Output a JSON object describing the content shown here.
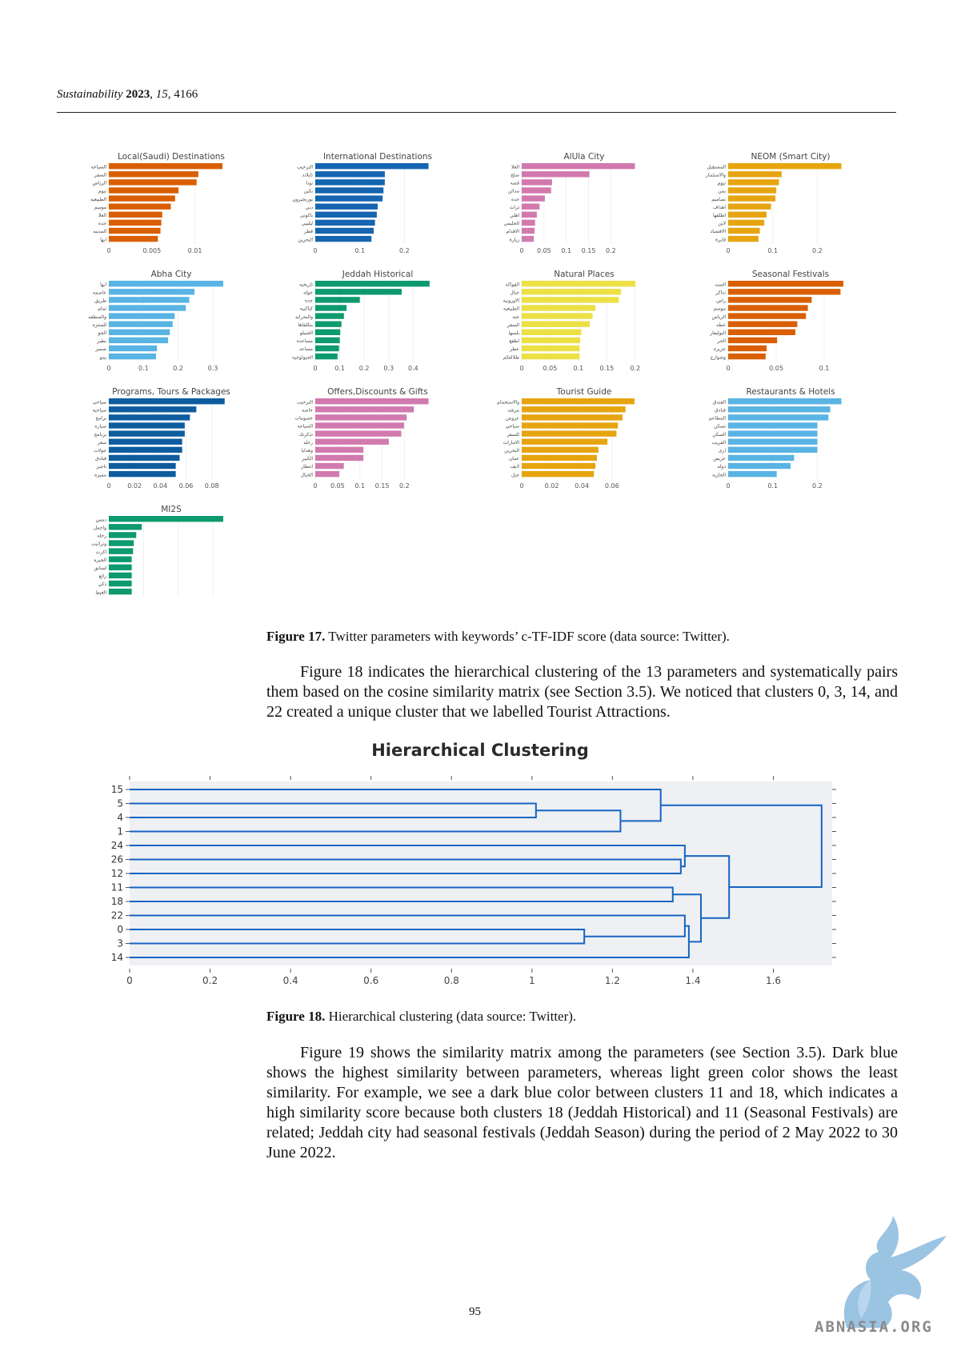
{
  "header": {
    "journal": "Sustainability",
    "year": "2023",
    "volume": "15",
    "article": "4166"
  },
  "figure17": {
    "caption_label": "Figure 17.",
    "caption_text": " Twitter parameters with keywords’ c-TF-IDF score (data source: Twitter)."
  },
  "paragraph1": "Figure 18 indicates the hierarchical clustering of the 13 parameters and systematically pairs them based on the cosine similarity matrix (see Section 3.5). We noticed that clusters 0, 3, 14, and 22 created a unique cluster that we labelled Tourist Attractions.",
  "figure18": {
    "caption_label": "Figure 18.",
    "caption_text": " Hierarchical clustering (data source: Twitter)."
  },
  "paragraph2": "Figure 19 shows the similarity matrix among the parameters (see Section 3.5). Dark blue shows the highest similarity between parameters, whereas light green color shows the least similarity. For example, we see a dark blue color between clusters 11 and 18, which indicates a high similarity score because both clusters 18 (Jeddah Historical) and 11 (Seasonal Festivals) are related; Jeddah city had seasonal festivals (Jeddah Season) during the period of 2 May 2022 to 30 June 2022.",
  "page_number": "95",
  "watermark": {
    "text": "ABNASIA.ORG"
  },
  "chart_data": [
    {
      "type": "bar",
      "orientation": "horizontal",
      "title": "Local(Saudi) Destinations",
      "color": "#d95f02",
      "categories": [
        "السياحه",
        "السفر",
        "الرياض",
        "نيوم",
        "الطبيعيه",
        "موسم",
        "العلا",
        "جده",
        "المدينه",
        "ابها"
      ],
      "values": [
        0.0132,
        0.0104,
        0.0102,
        0.0081,
        0.0077,
        0.0072,
        0.0062,
        0.0061,
        0.006,
        0.0057
      ],
      "ticks": [
        0,
        0.005,
        0.01
      ],
      "tick_labels": [
        "0",
        "0.005",
        "0.01"
      ],
      "xlim": [
        0,
        0.0145
      ]
    },
    {
      "type": "bar",
      "orientation": "horizontal",
      "title": "International Destinations",
      "color": "#1565b0",
      "categories": [
        "الترحيب",
        "تايلاند",
        "تونا",
        "بكين",
        "بورنجيرون",
        "دبي",
        "باكوني",
        "ليليبي",
        "قطر",
        "البحرين"
      ],
      "values": [
        0.254,
        0.156,
        0.156,
        0.153,
        0.151,
        0.14,
        0.138,
        0.134,
        0.131,
        0.126
      ],
      "ticks": [
        0,
        0.1,
        0.2
      ],
      "tick_labels": [
        "0",
        "0.1",
        "0.2"
      ],
      "xlim": [
        0,
        0.28
      ]
    },
    {
      "type": "bar",
      "orientation": "horizontal",
      "title": "AlUla City",
      "color": "#d17aae",
      "categories": [
        "العلا",
        "صلح",
        "قصه",
        "مدائن",
        "جده",
        "تراث",
        "اهلي",
        "الحليمي",
        "الاقدام",
        "زيارة"
      ],
      "values": [
        0.254,
        0.152,
        0.068,
        0.066,
        0.052,
        0.04,
        0.034,
        0.03,
        0.029,
        0.027
      ],
      "ticks": [
        0,
        0.05,
        0.1,
        0.15,
        0.2
      ],
      "tick_labels": [
        "0",
        "0.05",
        "0.1",
        "0.15",
        "0.2"
      ],
      "xlim": [
        0,
        0.28
      ]
    },
    {
      "type": "bar",
      "orientation": "horizontal",
      "title": "NEOM (Smart City)",
      "color": "#e6a50f",
      "categories": [
        "المستقبل",
        "والاستثمار",
        "نيوم",
        "يمن",
        "تصاميم",
        "اهداف",
        "اطلقها",
        "لاين",
        "الاقتصاد",
        "فايرة"
      ],
      "values": [
        0.254,
        0.12,
        0.114,
        0.108,
        0.106,
        0.096,
        0.086,
        0.081,
        0.071,
        0.068
      ],
      "ticks": [
        0,
        0.1,
        0.2
      ],
      "tick_labels": [
        "0",
        "0.1",
        "0.2"
      ],
      "xlim": [
        0,
        0.28
      ]
    },
    {
      "type": "bar",
      "orientation": "horizontal",
      "title": "Abha City",
      "color": "#58b4e3",
      "categories": [
        "ابها",
        "عاصمه",
        "طريق",
        "تمام",
        "والمنطقه",
        "للمنتزه",
        "الجو",
        "بطير",
        "صمير",
        "يمو"
      ],
      "values": [
        0.33,
        0.247,
        0.232,
        0.222,
        0.19,
        0.184,
        0.176,
        0.171,
        0.139,
        0.136
      ],
      "ticks": [
        0,
        0.1,
        0.2,
        0.3
      ],
      "tick_labels": [
        "0",
        "0.1",
        "0.2",
        "0.3"
      ],
      "xlim": [
        0,
        0.36
      ]
    },
    {
      "type": "bar",
      "orientation": "horizontal",
      "title": "Jeddah Historical",
      "color": "#0c9a6e",
      "categories": [
        "تاريخيه",
        "جوله",
        "جده",
        "كباكبيه",
        "والبحرايه",
        "بتكلفاها",
        "الجيبلو",
        "مساعده",
        "مساعد",
        "الجيولوجيه"
      ],
      "values": [
        0.467,
        0.353,
        0.182,
        0.128,
        0.117,
        0.107,
        0.102,
        0.1,
        0.097,
        0.091
      ],
      "ticks": [
        0,
        0.1,
        0.2,
        0.3,
        0.4
      ],
      "tick_labels": [
        "0",
        "0.1",
        "0.2",
        "0.3",
        "0.4"
      ],
      "xlim": [
        0,
        0.51
      ]
    },
    {
      "type": "bar",
      "orientation": "horizontal",
      "title": "Natural Places",
      "color": "#ede044",
      "categories": [
        "الفواكه",
        "جبال",
        "الاوروبيه",
        "الطبيعيه",
        "جنه",
        "السفر",
        "بلمبها",
        "اطفع",
        "عطر",
        "طلالعكم"
      ],
      "values": [
        0.2,
        0.175,
        0.171,
        0.13,
        0.125,
        0.12,
        0.105,
        0.103,
        0.102,
        0.102
      ],
      "ticks": [
        0,
        0.05,
        0.1,
        0.15,
        0.2
      ],
      "tick_labels": [
        "0",
        "0.05",
        "0.1",
        "0.15",
        "0.2"
      ],
      "xlim": [
        0,
        0.22
      ]
    },
    {
      "type": "bar",
      "orientation": "horizontal",
      "title": "Seasonal Festivals",
      "color": "#d95f02",
      "categories": [
        "السند",
        "تذاكر",
        "راس",
        "موسم",
        "الرياض",
        "خطه",
        "البوليفار",
        "الحر",
        "جزيره",
        "وشوارع"
      ],
      "values": [
        0.12,
        0.117,
        0.087,
        0.083,
        0.081,
        0.072,
        0.07,
        0.051,
        0.04,
        0.039
      ],
      "ticks": [
        0,
        0.05,
        0.1
      ],
      "tick_labels": [
        "0",
        "0.05",
        "0.1"
      ],
      "xlim": [
        0,
        0.13
      ]
    },
    {
      "type": "bar",
      "orientation": "horizontal",
      "title": "Programs, Tours & Packages",
      "color": "#0e5c9e",
      "categories": [
        "سياحي",
        "سياحيه",
        "برامج",
        "سياره",
        "برنامج",
        "سعر",
        "جولات",
        "فنادق",
        "تاجير",
        "مميزه"
      ],
      "values": [
        0.09,
        0.068,
        0.063,
        0.059,
        0.059,
        0.057,
        0.057,
        0.055,
        0.052,
        0.052
      ],
      "ticks": [
        0,
        0.02,
        0.04,
        0.06,
        0.08
      ],
      "tick_labels": [
        "0",
        "0.02",
        "0.04",
        "0.06",
        "0.08"
      ],
      "xlim": [
        0,
        0.097
      ]
    },
    {
      "type": "bar",
      "orientation": "horizontal",
      "title": "Offers,Discounts & Gifts",
      "color": "#d17aae",
      "categories": [
        "الترحيب",
        "خاصه",
        "خصومات",
        "السياحه",
        "تذكرتك",
        "رحله",
        "وهدايا",
        "الكبير",
        "انتظار",
        "الجبال"
      ],
      "values": [
        0.254,
        0.221,
        0.205,
        0.199,
        0.193,
        0.165,
        0.108,
        0.108,
        0.064,
        0.054
      ],
      "ticks": [
        0,
        0.05,
        0.1,
        0.15,
        0.2
      ],
      "tick_labels": [
        "0",
        "0.05",
        "0.1",
        "0.15",
        "0.2"
      ],
      "xlim": [
        0,
        0.28
      ]
    },
    {
      "type": "bar",
      "orientation": "horizontal",
      "title": "Tourist Guide",
      "color": "#e6a50f",
      "categories": [
        "والاستجمام",
        "مرشد",
        "عروض",
        "سياحي",
        "للسفر",
        "الامارات",
        "البحرين",
        "عمان",
        "لايف",
        "جبل"
      ],
      "values": [
        0.075,
        0.069,
        0.067,
        0.064,
        0.063,
        0.057,
        0.051,
        0.05,
        0.049,
        0.048
      ],
      "ticks": [
        0,
        0.02,
        0.04,
        0.06
      ],
      "tick_labels": [
        "0",
        "0.02",
        "0.04",
        "0.06"
      ],
      "xlim": [
        0,
        0.083
      ]
    },
    {
      "type": "bar",
      "orientation": "horizontal",
      "title": "Restaurants & Hotels",
      "color": "#58b4e3",
      "categories": [
        "الفندق",
        "فنادق",
        "المطاعم",
        "تسكن",
        "السكن",
        "القريب",
        "ارى",
        "عريض",
        "دوله",
        "الجازيه"
      ],
      "values": [
        0.254,
        0.229,
        0.225,
        0.2,
        0.2,
        0.2,
        0.2,
        0.148,
        0.14,
        0.109
      ],
      "ticks": [
        0,
        0.1,
        0.2
      ],
      "tick_labels": [
        "0",
        "0.1",
        "0.2"
      ],
      "xlim": [
        0,
        0.28
      ]
    },
    {
      "type": "bar",
      "orientation": "horizontal",
      "title": "MI2S",
      "color": "#0c9a6e",
      "categories": [
        "دمس",
        "واجمل",
        "رحله",
        "وتراتيب",
        "اكرت",
        "الخيره",
        "لسانق",
        "رائع",
        "ذكي",
        "الغيط"
      ],
      "values": [
        0.33,
        0.095,
        0.079,
        0.072,
        0.07,
        0.066,
        0.066,
        0.066,
        0.066,
        0.066
      ],
      "ticks": [
        0,
        0.1,
        0.2,
        0.3
      ],
      "tick_labels": [
        "0",
        "0.1",
        "0.2",
        "0.3"
      ],
      "xlim": [
        0,
        0.36
      ]
    },
    {
      "type": "dendrogram",
      "title": "Hierarchical Clustering",
      "color": "#1565c0",
      "leaves": [
        "15",
        "5",
        "4",
        "1",
        "24",
        "26",
        "12",
        "11",
        "18",
        "22",
        "0",
        "3",
        "14"
      ],
      "xlim": [
        0,
        1.72
      ],
      "xticks": [
        0,
        0.2,
        0.4,
        0.6,
        0.8,
        1,
        1.2,
        1.4,
        1.6
      ],
      "xtick_labels": [
        "0",
        "0.2",
        "0.4",
        "0.6",
        "0.8",
        "1",
        "1.2",
        "1.4",
        "1.6"
      ],
      "merges": [
        {
          "a": "5",
          "b": "4",
          "height": 1.01
        },
        {
          "a": "{5,4}",
          "b": "1",
          "height": 1.22
        },
        {
          "a": "15",
          "b": "{5,4,1}",
          "height": 1.32
        },
        {
          "a": "26",
          "b": "12",
          "height": 1.37
        },
        {
          "a": "24",
          "b": "{26,12}",
          "height": 1.38
        },
        {
          "a": "0",
          "b": "3",
          "height": 1.13
        },
        {
          "a": "22",
          "b": "{0,3}",
          "height": 1.38
        },
        {
          "a": "{22,0,3}",
          "b": "14",
          "height": 1.39
        },
        {
          "a": "11",
          "b": "18",
          "height": 1.35
        },
        {
          "a": "{11,18}",
          "b": "{22,0,3,14}",
          "height": 1.42
        },
        {
          "a": "{24,26,12}",
          "b": "{11,18,22,0,3,14}",
          "height": 1.49
        },
        {
          "a": "{15,5,4,1}",
          "b": "rest",
          "height": 1.72
        }
      ]
    }
  ]
}
